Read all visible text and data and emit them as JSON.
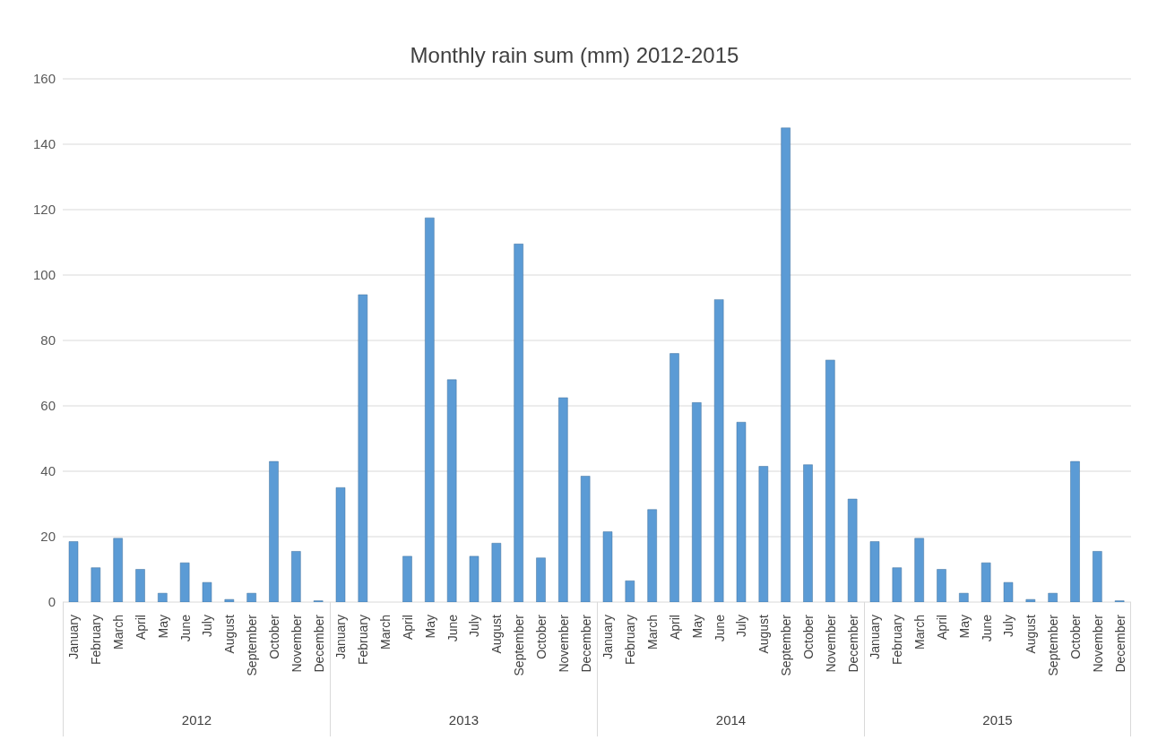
{
  "chart_data": {
    "type": "bar",
    "title": "Monthly rain sum (mm) 2012-2015",
    "categories": [
      "January",
      "February",
      "March",
      "April",
      "May",
      "June",
      "July",
      "August",
      "September",
      "October",
      "November",
      "December",
      "January",
      "February",
      "March",
      "April",
      "May",
      "June",
      "July",
      "August",
      "September",
      "October",
      "November",
      "December",
      "January",
      "February",
      "March",
      "April",
      "May",
      "June",
      "July",
      "August",
      "September",
      "October",
      "November",
      "December",
      "January",
      "February",
      "March",
      "April",
      "May",
      "June",
      "July",
      "August",
      "September",
      "October",
      "November",
      "December"
    ],
    "values": [
      18.5,
      10.5,
      19.5,
      10,
      2.7,
      12,
      6,
      0.8,
      2.7,
      43,
      15.5,
      0.4,
      35,
      94,
      0,
      14,
      117.5,
      68,
      14,
      18,
      109.5,
      13.5,
      62.5,
      38.5,
      21.5,
      6.5,
      28.3,
      76,
      61,
      92.5,
      55,
      41.5,
      145,
      42,
      74,
      31.5,
      18.5,
      10.5,
      19.5,
      10,
      2.7,
      12,
      6,
      0.8,
      2.7,
      43,
      15.5,
      0.4
    ],
    "color": "#5b9bd5",
    "annotations": [
      "2012",
      "2013",
      "2014",
      "2015"
    ],
    "ylim": [
      0,
      160
    ],
    "yticks": [
      0,
      20,
      40,
      60,
      80,
      100,
      120,
      140,
      160
    ],
    "grid": "y"
  }
}
